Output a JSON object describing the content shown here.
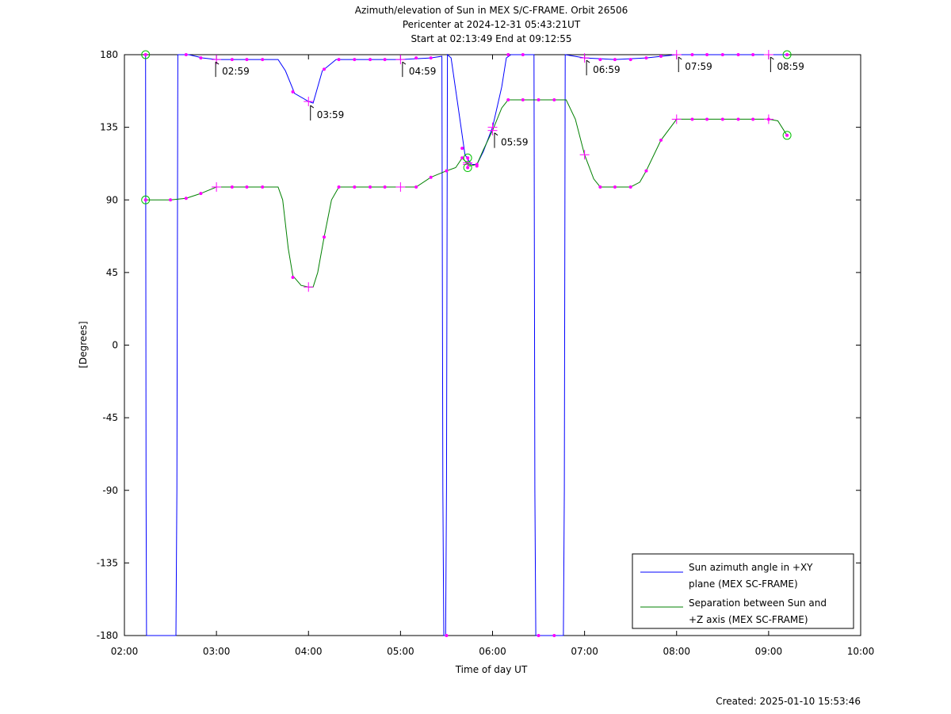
{
  "chart_data": {
    "type": "line",
    "title": "Azimuth/elevation of Sun in MEX S/C-FRAME.  Orbit 26506",
    "subtitle_1": "Pericenter at 2024-12-31 05:43:21UT",
    "subtitle_2": "Start at 02:13:49 End at 09:12:55",
    "xlabel": "Time of day UT",
    "ylabel": "[Degrees]",
    "created": "Created: 2025-01-10 15:53:46",
    "x_unit": "hours of day (UT)",
    "xlim": [
      2.0,
      10.0
    ],
    "ylim": [
      -180,
      180
    ],
    "x_ticks": [
      2,
      3,
      4,
      5,
      6,
      7,
      8,
      9,
      10
    ],
    "x_tick_labels": [
      "02:00",
      "03:00",
      "04:00",
      "05:00",
      "06:00",
      "07:00",
      "08:00",
      "09:00",
      "10:00"
    ],
    "y_ticks": [
      180,
      135,
      90,
      45,
      0,
      -45,
      -90,
      -135,
      -180
    ],
    "y_tick_labels": [
      "180",
      "135",
      "90",
      "45",
      "0",
      "-45",
      "-90",
      "-135",
      "-180"
    ],
    "grid": false,
    "legend_position": "bottom-right",
    "series": [
      {
        "name": "Sun azimuth angle in +XY plane (MEX SC-FRAME)",
        "legend_line1": "Sun azimuth angle in +XY",
        "legend_line2": "plane (MEX SC-FRAME)",
        "color": "#0000ff",
        "points": [
          [
            2.23,
            180
          ],
          [
            2.235,
            -90
          ],
          [
            2.24,
            -180
          ],
          [
            2.56,
            -180
          ],
          [
            2.57,
            -90
          ],
          [
            2.58,
            180
          ],
          [
            2.7,
            180
          ],
          [
            2.85,
            178
          ],
          [
            3.0,
            177
          ],
          [
            3.33,
            177
          ],
          [
            3.67,
            177
          ],
          [
            3.75,
            170
          ],
          [
            3.85,
            156
          ],
          [
            4.0,
            151
          ],
          [
            4.05,
            150
          ],
          [
            4.15,
            170
          ],
          [
            4.3,
            177
          ],
          [
            4.67,
            177
          ],
          [
            5.0,
            177
          ],
          [
            5.33,
            178
          ],
          [
            5.45,
            179
          ],
          [
            5.46,
            -90
          ],
          [
            5.47,
            -180
          ],
          [
            5.49,
            -180
          ],
          [
            5.5,
            -90
          ],
          [
            5.51,
            180
          ],
          [
            5.55,
            178
          ],
          [
            5.62,
            150
          ],
          [
            5.7,
            118
          ],
          [
            5.77,
            112
          ],
          [
            5.83,
            112
          ],
          [
            5.9,
            120
          ],
          [
            6.0,
            135
          ],
          [
            6.1,
            160
          ],
          [
            6.15,
            178
          ],
          [
            6.2,
            180
          ],
          [
            6.35,
            180
          ],
          [
            6.45,
            180
          ],
          [
            6.46,
            -90
          ],
          [
            6.47,
            -180
          ],
          [
            6.77,
            -180
          ],
          [
            6.78,
            -90
          ],
          [
            6.79,
            180
          ],
          [
            7.0,
            178
          ],
          [
            7.33,
            177
          ],
          [
            7.67,
            178
          ],
          [
            8.0,
            180
          ],
          [
            8.5,
            180
          ],
          [
            9.0,
            180
          ],
          [
            9.2,
            180
          ]
        ]
      },
      {
        "name": "Separation between Sun and +Z axis (MEX SC-FRAME)",
        "legend_line1": "Separation between Sun and",
        "legend_line2": "+Z axis (MEX SC-FRAME)",
        "color": "#008000",
        "points": [
          [
            2.23,
            90
          ],
          [
            2.5,
            90
          ],
          [
            2.67,
            91
          ],
          [
            2.83,
            94
          ],
          [
            3.0,
            98
          ],
          [
            3.33,
            98
          ],
          [
            3.67,
            98
          ],
          [
            3.72,
            90
          ],
          [
            3.78,
            60
          ],
          [
            3.83,
            43
          ],
          [
            3.92,
            37
          ],
          [
            4.0,
            36
          ],
          [
            4.05,
            36
          ],
          [
            4.1,
            45
          ],
          [
            4.17,
            67
          ],
          [
            4.25,
            90
          ],
          [
            4.33,
            98
          ],
          [
            4.67,
            98
          ],
          [
            5.0,
            98
          ],
          [
            5.17,
            98
          ],
          [
            5.33,
            104
          ],
          [
            5.5,
            108
          ],
          [
            5.6,
            110
          ],
          [
            5.67,
            116
          ],
          [
            5.75,
            111
          ],
          [
            5.83,
            112
          ],
          [
            5.9,
            121
          ],
          [
            6.0,
            133
          ],
          [
            6.1,
            147
          ],
          [
            6.17,
            152
          ],
          [
            6.5,
            152
          ],
          [
            6.8,
            152
          ],
          [
            6.9,
            140
          ],
          [
            7.0,
            118
          ],
          [
            7.1,
            103
          ],
          [
            7.17,
            98
          ],
          [
            7.5,
            98
          ],
          [
            7.6,
            101
          ],
          [
            7.67,
            108
          ],
          [
            7.83,
            127
          ],
          [
            8.0,
            140
          ],
          [
            8.33,
            140
          ],
          [
            8.67,
            140
          ],
          [
            9.0,
            140
          ],
          [
            9.1,
            139
          ],
          [
            9.2,
            130
          ]
        ]
      }
    ],
    "markers": {
      "color": "#ff00ff",
      "azimuth_dots": [
        [
          2.67,
          180
        ],
        [
          2.83,
          178
        ],
        [
          3.17,
          177
        ],
        [
          3.33,
          177
        ],
        [
          3.5,
          177
        ],
        [
          3.83,
          157
        ],
        [
          4.17,
          171
        ],
        [
          4.33,
          177
        ],
        [
          4.5,
          177
        ],
        [
          4.67,
          177
        ],
        [
          4.83,
          177
        ],
        [
          5.17,
          178
        ],
        [
          5.33,
          178
        ],
        [
          5.5,
          -180
        ],
        [
          5.67,
          122
        ],
        [
          5.83,
          112
        ],
        [
          6.17,
          180
        ],
        [
          6.33,
          180
        ],
        [
          6.5,
          -180
        ],
        [
          6.67,
          -180
        ],
        [
          7.17,
          177
        ],
        [
          7.33,
          177
        ],
        [
          7.5,
          177
        ],
        [
          7.67,
          178
        ],
        [
          7.83,
          179
        ],
        [
          8.17,
          180
        ],
        [
          8.33,
          180
        ],
        [
          8.5,
          180
        ],
        [
          8.67,
          180
        ],
        [
          8.83,
          180
        ]
      ],
      "separation_dots": [
        [
          2.5,
          90
        ],
        [
          2.67,
          91
        ],
        [
          2.83,
          94
        ],
        [
          3.17,
          98
        ],
        [
          3.33,
          98
        ],
        [
          3.5,
          98
        ],
        [
          3.83,
          42
        ],
        [
          4.17,
          67
        ],
        [
          4.33,
          98
        ],
        [
          4.5,
          98
        ],
        [
          4.67,
          98
        ],
        [
          4.83,
          98
        ],
        [
          5.17,
          98
        ],
        [
          5.33,
          104
        ],
        [
          5.5,
          108
        ],
        [
          5.67,
          116
        ],
        [
          5.83,
          111
        ],
        [
          6.17,
          152
        ],
        [
          6.33,
          152
        ],
        [
          6.5,
          152
        ],
        [
          6.67,
          152
        ],
        [
          7.17,
          98
        ],
        [
          7.33,
          98
        ],
        [
          7.5,
          98
        ],
        [
          7.67,
          108
        ],
        [
          7.83,
          127
        ],
        [
          8.17,
          140
        ],
        [
          8.33,
          140
        ],
        [
          8.5,
          140
        ],
        [
          8.67,
          140
        ],
        [
          8.83,
          140
        ],
        [
          9.0,
          140
        ]
      ],
      "azimuth_crosses": [
        [
          3.0,
          177
        ],
        [
          4.0,
          151
        ],
        [
          5.0,
          177
        ],
        [
          5.73,
          113
        ],
        [
          6.0,
          135
        ],
        [
          7.0,
          178
        ],
        [
          8.0,
          180
        ],
        [
          9.0,
          180
        ]
      ],
      "separation_crosses": [
        [
          3.0,
          98
        ],
        [
          4.0,
          36
        ],
        [
          5.0,
          98
        ],
        [
          5.73,
          112
        ],
        [
          6.0,
          133
        ],
        [
          7.0,
          118
        ],
        [
          8.0,
          140
        ],
        [
          9.0,
          140
        ]
      ],
      "circles": [
        [
          2.23,
          180
        ],
        [
          2.23,
          90
        ],
        [
          5.73,
          116
        ],
        [
          5.73,
          110
        ],
        [
          9.2,
          180
        ],
        [
          9.2,
          130
        ]
      ]
    },
    "hour_annotations": [
      {
        "label": "02:59",
        "x": 3.0,
        "y": 177
      },
      {
        "label": "03:59",
        "x": 4.03,
        "y": 150
      },
      {
        "label": "04:59",
        "x": 5.03,
        "y": 177
      },
      {
        "label": "05:59",
        "x": 6.03,
        "y": 133
      },
      {
        "label": "06:59",
        "x": 7.03,
        "y": 178
      },
      {
        "label": "07:59",
        "x": 8.03,
        "y": 180
      },
      {
        "label": "08:59",
        "x": 9.03,
        "y": 180
      }
    ]
  }
}
